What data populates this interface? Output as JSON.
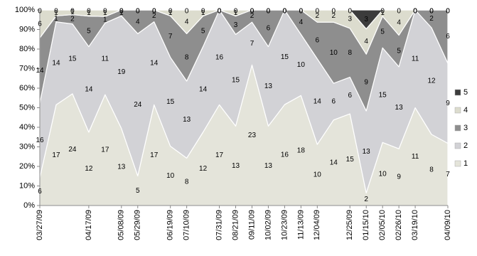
{
  "chart_data": {
    "type": "stacked-area-percent",
    "categories": [
      "03/27/09",
      null,
      null,
      "04/17/09",
      null,
      "05/08/09",
      "05/29/09",
      null,
      "06/19/09",
      "07/10/09",
      null,
      "07/31/09",
      "08/21/09",
      "09/11/09",
      "10/02/09",
      "10/23/09",
      "11/13/09",
      "12/04/09",
      null,
      "12/25/09",
      "01/15/10",
      "02/05/10",
      "02/26/10",
      "03/19/10",
      null,
      "04/09/10"
    ],
    "series": [
      {
        "name": "1",
        "color": "#e4e4da",
        "values": [
          6,
          17,
          24,
          12,
          17,
          13,
          5,
          17,
          10,
          8,
          12,
          17,
          13,
          23,
          13,
          16,
          18,
          10,
          14,
          15,
          2,
          10,
          9,
          11,
          8,
          7
        ]
      },
      {
        "name": "2",
        "color": "#d2d2d6",
        "values": [
          16,
          14,
          15,
          14,
          11,
          19,
          24,
          14,
          15,
          13,
          14,
          16,
          15,
          7,
          13,
          15,
          10,
          14,
          6,
          6,
          13,
          15,
          13,
          11,
          12,
          9
        ]
      },
      {
        "name": "3",
        "color": "#8e8e8e",
        "values": [
          14,
          1,
          2,
          5,
          1,
          1,
          4,
          2,
          7,
          8,
          5,
          0,
          3,
          2,
          6,
          0,
          4,
          6,
          10,
          8,
          9,
          5,
          5,
          0,
          2,
          6
        ]
      },
      {
        "name": "4",
        "color": "#dcdcce",
        "values": [
          6,
          1,
          1,
          1,
          1,
          0,
          0,
          0,
          1,
          4,
          1,
          0,
          1,
          0,
          0,
          0,
          0,
          2,
          2,
          3,
          4,
          1,
          4,
          0,
          0,
          0
        ]
      },
      {
        "name": "5",
        "color": "#3c3c3c",
        "values": [
          0,
          0,
          0,
          0,
          0,
          0,
          0,
          0,
          0,
          0,
          0,
          0,
          0,
          0,
          0,
          0,
          0,
          0,
          0,
          0,
          3,
          0,
          0,
          0,
          0,
          0
        ]
      }
    ],
    "ylim": [
      0,
      100
    ],
    "yticks": [
      {
        "value": 0,
        "label": "0%"
      },
      {
        "value": 10,
        "label": "10%"
      },
      {
        "value": 20,
        "label": "20%"
      },
      {
        "value": 30,
        "label": "30%"
      },
      {
        "value": 40,
        "label": "40%"
      },
      {
        "value": 50,
        "label": "50%"
      },
      {
        "value": 60,
        "label": "60%"
      },
      {
        "value": 70,
        "label": "70%"
      },
      {
        "value": 80,
        "label": "80%"
      },
      {
        "value": 90,
        "label": "90%"
      },
      {
        "value": 100,
        "label": "100%"
      }
    ],
    "legend": "right"
  }
}
